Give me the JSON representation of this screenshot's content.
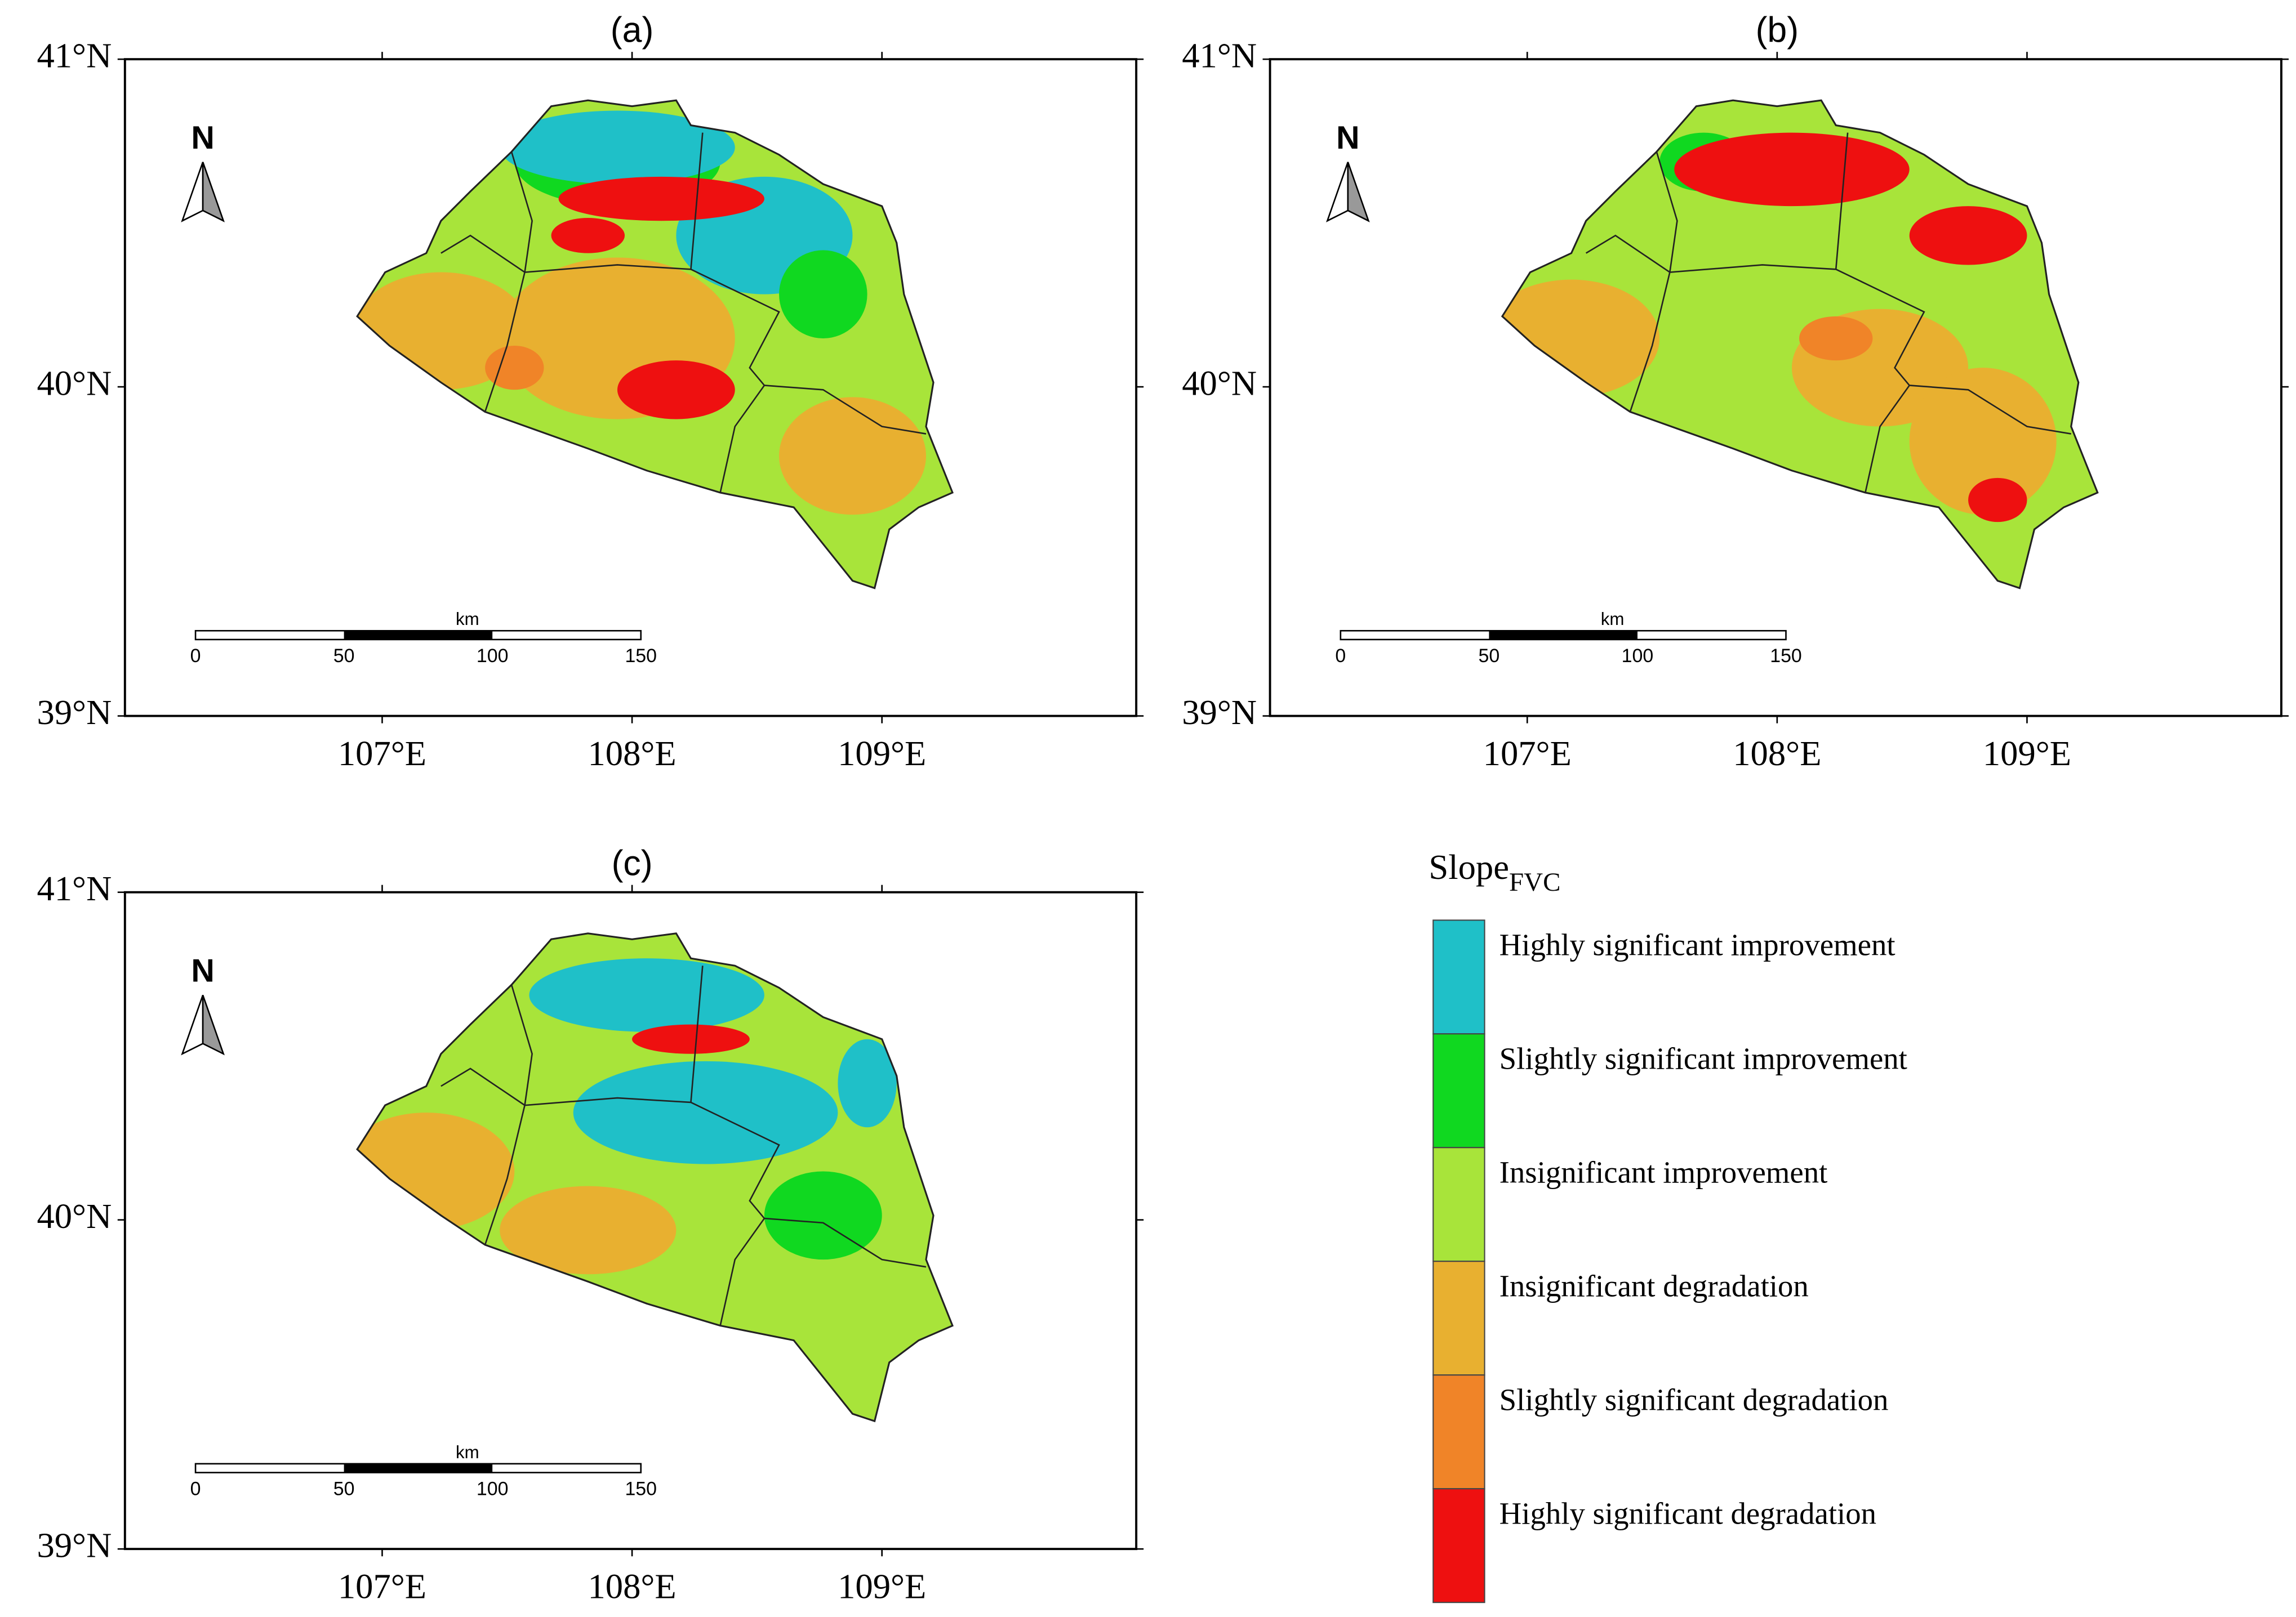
{
  "panels": [
    {
      "label": "(a)"
    },
    {
      "label": "(b)"
    },
    {
      "label": "(c)"
    }
  ],
  "axes": {
    "lat_labels": [
      "41°N",
      "40°N",
      "39°N"
    ],
    "lon_labels": [
      "107°E",
      "108°E",
      "109°E"
    ]
  },
  "north": "N",
  "scale_bar": {
    "unit": "km",
    "labels": [
      "0",
      "50",
      "100",
      "150"
    ]
  },
  "legend": {
    "title": "Slope",
    "title_subscript": "FVC",
    "items": [
      {
        "label": "Highly significant improvement",
        "color": "#1fc0c8"
      },
      {
        "label": "Slightly significant improvement",
        "color": "#10d820"
      },
      {
        "label": "Insignificant improvement",
        "color": "#a8e43a"
      },
      {
        "label": "Insignificant degradation",
        "color": "#e8b030"
      },
      {
        "label": "Slightly significant degradation",
        "color": "#f08428"
      },
      {
        "label": "Highly significant degradation",
        "color": "#ee1010"
      }
    ]
  }
}
